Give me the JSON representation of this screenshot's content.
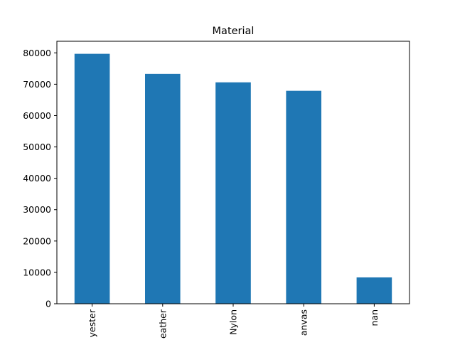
{
  "chart_data": {
    "type": "bar",
    "title": "Material",
    "xlabel": "",
    "ylabel": "",
    "categories": [
      "Polyester",
      "Leather",
      "Nylon",
      "Canvas",
      "nan"
    ],
    "visible_category_labels": [
      "yester",
      "eather",
      "Nylon",
      "anvas",
      "nan"
    ],
    "values": [
      79700,
      73300,
      70600,
      67900,
      8400
    ],
    "ylim": [
      0,
      83700
    ],
    "yticks": [
      0,
      10000,
      20000,
      30000,
      40000,
      50000,
      60000,
      70000,
      80000
    ],
    "ytick_labels": [
      "0",
      "10000",
      "20000",
      "30000",
      "40000",
      "50000",
      "60000",
      "70000",
      "80000"
    ],
    "grid": false,
    "legend": "none",
    "bar_color": "#1f77b4"
  }
}
